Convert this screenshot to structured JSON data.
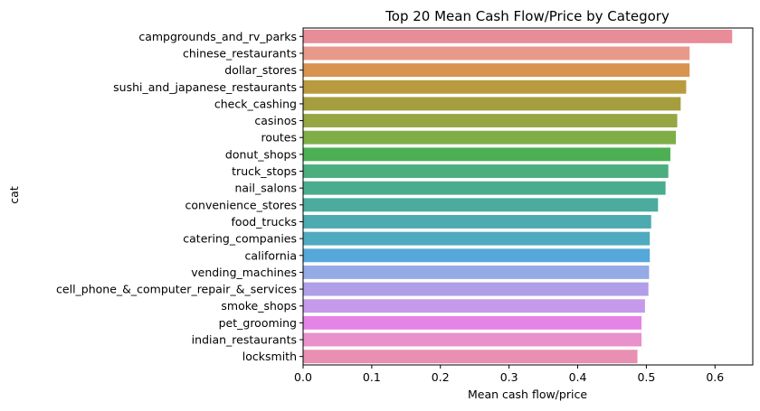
{
  "chart_data": {
    "type": "bar",
    "orientation": "horizontal",
    "title": "Top 20 Mean Cash Flow/Price by Category",
    "xlabel": "Mean cash flow/price",
    "ylabel": "cat",
    "xlim": [
      0,
      0.655
    ],
    "xticks": [
      0.0,
      0.1,
      0.2,
      0.3,
      0.4,
      0.5,
      0.6
    ],
    "xtick_labels": [
      "0.0",
      "0.1",
      "0.2",
      "0.3",
      "0.4",
      "0.5",
      "0.6"
    ],
    "grid": false,
    "legend": "none",
    "categories": [
      "campgrounds_and_rv_parks",
      "chinese_restaurants",
      "dollar_stores",
      "sushi_and_japanese_restaurants",
      "check_cashing",
      "casinos",
      "routes",
      "donut_shops",
      "truck_stops",
      "nail_salons",
      "convenience_stores",
      "food_trucks",
      "catering_companies",
      "california",
      "vending_machines",
      "cell_phone_&_computer_repair_&_services",
      "smoke_shops",
      "pet_grooming",
      "indian_restaurants",
      "locksmith"
    ],
    "values": [
      0.625,
      0.563,
      0.563,
      0.558,
      0.55,
      0.545,
      0.543,
      0.535,
      0.532,
      0.528,
      0.517,
      0.507,
      0.505,
      0.505,
      0.504,
      0.503,
      0.498,
      0.493,
      0.493,
      0.487
    ],
    "colors": [
      "#e88c97",
      "#e9998a",
      "#d99350",
      "#b79b3e",
      "#a49e3e",
      "#95a642",
      "#7fae47",
      "#4daf53",
      "#4cae7d",
      "#4aac8e",
      "#4aab9e",
      "#4caab0",
      "#4eaabf",
      "#55a8d9",
      "#95abe6",
      "#b09ee8",
      "#c69aea",
      "#e584e7",
      "#e891cb",
      "#e88fb3"
    ]
  }
}
